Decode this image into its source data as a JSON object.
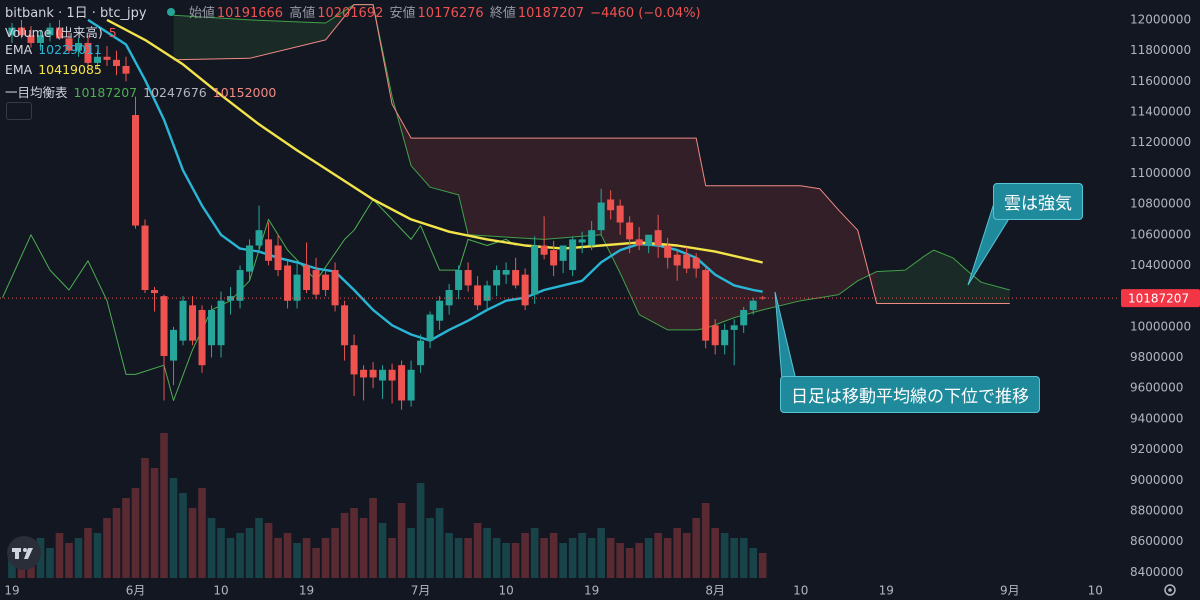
{
  "chart_data": {
    "type": "candlestick",
    "title": "bitbank · 1日 · btc_jpy",
    "ohlc_labels": [
      "始値",
      "高値",
      "安値",
      "終値"
    ],
    "change_label": "−4460 (−0.04%)",
    "up_color": "#26a69a",
    "down_color": "#ef5350",
    "x": [
      0,
      1,
      2,
      3,
      4,
      5,
      6,
      7,
      8,
      9,
      10,
      11,
      12,
      13,
      14,
      15,
      16,
      17,
      18,
      19,
      20,
      21,
      22,
      23,
      24,
      25,
      26,
      27,
      28,
      29,
      30,
      31,
      32,
      33,
      34,
      35,
      36,
      37,
      38,
      39,
      40,
      41,
      42,
      43,
      44,
      45,
      46,
      47,
      48,
      49,
      50,
      51,
      52,
      53,
      54,
      55,
      56,
      57,
      58,
      59,
      60,
      61,
      62,
      63,
      64,
      65,
      66,
      67,
      68,
      69,
      70,
      71,
      72,
      73,
      74,
      75,
      76,
      77,
      78,
      79
    ],
    "open": [
      11900000,
      11950000,
      11900000,
      11850000,
      11900000,
      11950000,
      11880000,
      11800000,
      11850000,
      11720000,
      11760000,
      11740000,
      11700000,
      11380000,
      10660000,
      10240000,
      10200000,
      9780000,
      9910000,
      10140000,
      10110000,
      9880000,
      9880000,
      10170000,
      10170000,
      10360000,
      10530000,
      10570000,
      10530000,
      10400000,
      10170000,
      10400000,
      10370000,
      10340000,
      10370000,
      10140000,
      9880000,
      9720000,
      9720000,
      9650000,
      9720000,
      9750000,
      9520000,
      9750000,
      9910000,
      10040000,
      10140000,
      10240000,
      10370000,
      10270000,
      10170000,
      10270000,
      10340000,
      10370000,
      10340000,
      10210000,
      10530000,
      10500000,
      10430000,
      10370000,
      10550000,
      10530000,
      10630000,
      10830000,
      10790000,
      10680000,
      10570000,
      10530000,
      10630000,
      10530000,
      10470000,
      10470000,
      10450000,
      10370000,
      10010000,
      9880000,
      9980000,
      10010000,
      10110000,
      10191666
    ],
    "high": [
      11980000,
      12000000,
      11960000,
      11930000,
      11980000,
      12000000,
      11920000,
      11880000,
      11900000,
      11800000,
      11830000,
      11800000,
      11760000,
      11500000,
      10700000,
      10260000,
      10210000,
      10000000,
      10200000,
      10200000,
      10140000,
      10140000,
      10230000,
      10260000,
      10400000,
      10570000,
      10790000,
      10680000,
      10600000,
      10430000,
      10410000,
      10550000,
      10450000,
      10380000,
      10420000,
      10170000,
      9950000,
      9750000,
      9770000,
      9750000,
      9760000,
      9780000,
      9780000,
      9950000,
      10100000,
      10200000,
      10280000,
      10400000,
      10420000,
      10330000,
      10300000,
      10400000,
      10420000,
      10450000,
      10380000,
      10590000,
      10720000,
      10560000,
      10530000,
      10590000,
      10620000,
      10690000,
      10900000,
      10890000,
      10830000,
      10720000,
      10650000,
      10600000,
      10730000,
      10580000,
      10500000,
      10520000,
      10480000,
      10400000,
      10050000,
      10020000,
      10050000,
      10130000,
      10190000,
      10201692
    ],
    "low": [
      11850000,
      11880000,
      11820000,
      11800000,
      11860000,
      11870000,
      11780000,
      11760000,
      11700000,
      11680000,
      11700000,
      11640000,
      11600000,
      10640000,
      10220000,
      10100000,
      9520000,
      9620000,
      9880000,
      9880000,
      9700000,
      9800000,
      9800000,
      10080000,
      10120000,
      10300000,
      10480000,
      10400000,
      10330000,
      10120000,
      10120000,
      10220000,
      10180000,
      10200000,
      10100000,
      9780000,
      9550000,
      9520000,
      9600000,
      9530000,
      9500000,
      9460000,
      9480000,
      9700000,
      9860000,
      9980000,
      10080000,
      10180000,
      10230000,
      10110000,
      10100000,
      10200000,
      10280000,
      10250000,
      10110000,
      10150000,
      10440000,
      10330000,
      10350000,
      10330000,
      10480000,
      10500000,
      10600000,
      10700000,
      10600000,
      10480000,
      10500000,
      10480000,
      10450000,
      10380000,
      10300000,
      10350000,
      10320000,
      9860000,
      9820000,
      9820000,
      9750000,
      9960000,
      10080000,
      10176276
    ],
    "close": [
      11950000,
      11900000,
      11850000,
      11900000,
      11950000,
      11880000,
      11800000,
      11850000,
      11720000,
      11760000,
      11740000,
      11700000,
      11650000,
      10660000,
      10240000,
      10220000,
      9810000,
      9980000,
      10170000,
      9910000,
      9750000,
      10110000,
      10170000,
      10200000,
      10370000,
      10530000,
      10630000,
      10430000,
      10370000,
      10170000,
      10340000,
      10240000,
      10210000,
      10240000,
      10140000,
      9880000,
      9690000,
      9670000,
      9670000,
      9720000,
      9650000,
      9520000,
      9720000,
      9910000,
      10080000,
      10170000,
      10240000,
      10370000,
      10270000,
      10140000,
      10270000,
      10370000,
      10370000,
      10270000,
      10140000,
      10530000,
      10470000,
      10400000,
      10530000,
      10570000,
      10570000,
      10630000,
      10810000,
      10760000,
      10680000,
      10570000,
      10530000,
      10600000,
      10530000,
      10450000,
      10400000,
      10380000,
      10380000,
      9910000,
      9880000,
      9980000,
      10010000,
      10110000,
      10170000,
      10187207
    ],
    "volume_name": "Volume (出来高)",
    "volume": [
      6,
      5,
      7,
      8,
      6,
      9,
      7,
      8,
      10,
      9,
      12,
      14,
      16,
      18,
      24,
      22,
      29,
      20,
      17,
      14,
      18,
      12,
      10,
      8,
      9,
      10,
      12,
      11,
      8,
      9,
      7,
      8,
      6,
      8,
      10,
      13,
      14,
      12,
      16,
      11,
      8,
      15,
      10,
      19,
      12,
      14,
      9,
      8,
      8,
      11,
      10,
      8,
      7,
      7,
      9,
      10,
      8,
      9,
      7,
      8,
      9,
      8,
      10,
      8,
      7,
      6,
      7,
      8,
      9,
      8,
      10,
      9,
      12,
      15,
      10,
      9,
      8,
      8,
      6,
      5
    ],
    "series": [
      {
        "name": "EMA",
        "color": "#29b6d6",
        "x": [
          8,
          12,
          14,
          16,
          18,
          20,
          22,
          24,
          26,
          28,
          30,
          32,
          34,
          36,
          38,
          40,
          42,
          44,
          46,
          48,
          50,
          52,
          54,
          56,
          58,
          60,
          62,
          64,
          66,
          68,
          70,
          72,
          74,
          76,
          78,
          79
        ],
        "values": [
          12000000,
          11840000,
          11610000,
          11350000,
          11020000,
          10790000,
          10600000,
          10510000,
          10490000,
          10450000,
          10420000,
          10380000,
          10360000,
          10240000,
          10110000,
          10010000,
          9950000,
          9910000,
          9980000,
          10040000,
          10110000,
          10170000,
          10190000,
          10240000,
          10270000,
          10300000,
          10420000,
          10500000,
          10540000,
          10530000,
          10500000,
          10450000,
          10340000,
          10270000,
          10240000,
          10229011
        ]
      },
      {
        "name": "EMA",
        "color": "#f3e44a",
        "x": [
          10,
          14,
          18,
          22,
          26,
          30,
          34,
          38,
          42,
          46,
          50,
          54,
          58,
          62,
          66,
          70,
          74,
          79
        ],
        "values": [
          12000000,
          11870000,
          11710000,
          11510000,
          11320000,
          11150000,
          10990000,
          10830000,
          10700000,
          10620000,
          10570000,
          10530000,
          10510000,
          10530000,
          10550000,
          10530000,
          10490000,
          10419085
        ]
      }
    ],
    "ichimoku": {
      "name": "一目均衡表",
      "legend_values": [
        10247676,
        10152000
      ],
      "lagging": {
        "color": "#4caf50",
        "x": [
          -1,
          2,
          4,
          6,
          8,
          10,
          12,
          13,
          16,
          17,
          19,
          21,
          23,
          25,
          27,
          29,
          31,
          32,
          35,
          36,
          38,
          40,
          42,
          43,
          45,
          47,
          48,
          50,
          52,
          53
        ],
        "values": [
          10190000,
          10600000,
          10370000,
          10240000,
          10430000,
          10170000,
          9690000,
          9690000,
          9750000,
          9520000,
          9850000,
          10110000,
          10170000,
          10300000,
          10700000,
          10500000,
          10370000,
          10300000,
          10570000,
          10630000,
          10830000,
          10700000,
          10570000,
          10660000,
          10370000,
          10370000,
          10570000,
          10530000,
          10570000,
          10530000
        ]
      },
      "cloud_x": [
        17,
        25,
        33,
        36,
        38,
        40,
        42,
        44,
        47,
        48,
        56,
        62,
        64,
        66,
        69,
        72,
        73,
        76,
        79,
        83,
        85,
        87,
        89,
        91,
        94,
        96,
        97,
        99,
        101,
        102,
        105
      ],
      "span_a": {
        "color": "#43a047",
        "values": [
          12030000,
          12000000,
          11980000,
          12100000,
          12100000,
          11500000,
          11050000,
          10910000,
          10860000,
          10600000,
          10570000,
          10600000,
          10350000,
          10080000,
          9980000,
          9980000,
          9990000,
          10060000,
          10110000,
          10170000,
          10190000,
          10210000,
          10300000,
          10360000,
          10370000,
          10460000,
          10500000,
          10450000,
          10340000,
          10290000,
          10240000
        ]
      },
      "span_b": {
        "color": "#f08a84",
        "values": [
          11740000,
          11750000,
          11870000,
          12100000,
          12100000,
          11450000,
          11230000,
          11230000,
          11230000,
          11230000,
          11230000,
          11230000,
          11230000,
          11230000,
          11230000,
          11230000,
          10920000,
          10920000,
          10920000,
          10920000,
          10900000,
          10760000,
          10630000,
          10152000,
          10152000,
          10152000,
          10152000,
          10152000,
          10152000,
          10152000,
          10152000
        ]
      },
      "up_fill": "rgba(67,160,71,0.14)",
      "down_fill": "rgba(239,83,80,0.14)"
    },
    "xlim": [
      -1.26,
      116.6
    ],
    "ylim": [
      8350000,
      12130000
    ],
    "xticks": [
      {
        "value": 0,
        "label": "19"
      },
      {
        "value": 13,
        "label": "6月"
      },
      {
        "value": 22,
        "label": "10"
      },
      {
        "value": 31,
        "label": "19"
      },
      {
        "value": 43,
        "label": "7月"
      },
      {
        "value": 52,
        "label": "10"
      },
      {
        "value": 61,
        "label": "19"
      },
      {
        "value": 74,
        "label": "8月"
      },
      {
        "value": 83,
        "label": "10"
      },
      {
        "value": 92,
        "label": "19"
      },
      {
        "value": 105,
        "label": "9月"
      },
      {
        "value": 114,
        "label": "10"
      }
    ],
    "yticks": [
      8400000,
      8600000,
      8800000,
      9000000,
      9200000,
      9400000,
      9600000,
      9800000,
      10000000,
      10200000,
      10400000,
      10600000,
      10800000,
      11000000,
      11200000,
      11400000,
      11600000,
      11800000,
      12000000
    ],
    "grid": false,
    "annotations": [
      {
        "text": "雲は強気"
      },
      {
        "text": "日足は移動平均線の下位で推移"
      }
    ]
  }
}
